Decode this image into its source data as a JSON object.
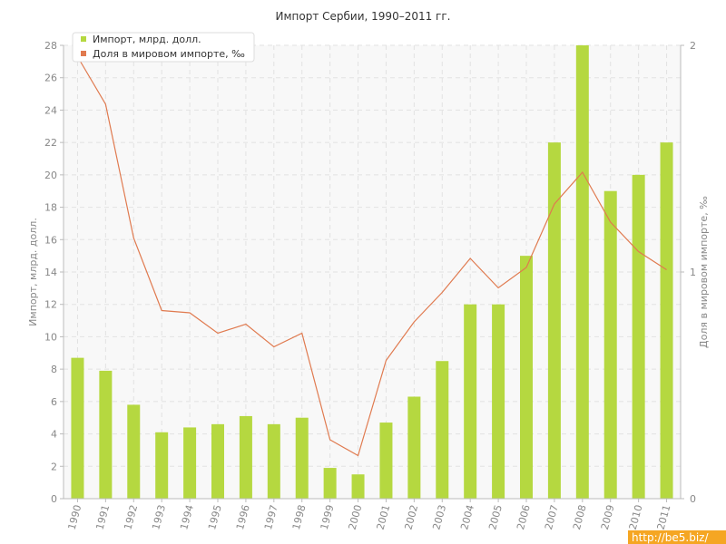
{
  "chart_data": {
    "type": "bar",
    "title": "Импорт Сербии, 1990–2011 гг.",
    "categories": [
      "1990",
      "1991",
      "1992",
      "1993",
      "1994",
      "1995",
      "1996",
      "1997",
      "1998",
      "1999",
      "2000",
      "2001",
      "2002",
      "2003",
      "2004",
      "2005",
      "2006",
      "2007",
      "2008",
      "2009",
      "2010",
      "2011"
    ],
    "series": [
      {
        "name": "Импорт, млрд. долл.",
        "type": "bar",
        "axis": "left",
        "color": "#b5d840",
        "values": [
          8.7,
          7.9,
          5.8,
          4.1,
          4.4,
          4.6,
          5.1,
          4.6,
          5.0,
          1.9,
          1.5,
          4.7,
          6.3,
          8.5,
          12.0,
          12.0,
          15.0,
          22.0,
          28.0,
          19.0,
          20.0,
          22.0
        ]
      },
      {
        "name": "Доля в мировом импорте, ‰",
        "type": "line",
        "axis": "right",
        "color": "#e07a4f",
        "values": [
          1.95,
          1.74,
          1.15,
          0.83,
          0.82,
          0.73,
          0.77,
          0.67,
          0.73,
          0.26,
          0.19,
          0.61,
          0.78,
          0.91,
          1.06,
          0.93,
          1.02,
          1.3,
          1.44,
          1.22,
          1.09,
          1.01
        ]
      }
    ],
    "ylabel": "Импорт, млрд. долл.",
    "ylabel_right": "Доля в мировом импорте, ‰",
    "ylim": [
      0,
      28
    ],
    "yticks": [
      0,
      2,
      4,
      6,
      8,
      10,
      12,
      14,
      16,
      18,
      20,
      22,
      24,
      26,
      28
    ],
    "ylim_right": [
      0,
      2
    ],
    "yticks_right": [
      0,
      1,
      2
    ],
    "grid": true,
    "legend_position": "top-left",
    "watermark": "http://be5.biz/"
  }
}
